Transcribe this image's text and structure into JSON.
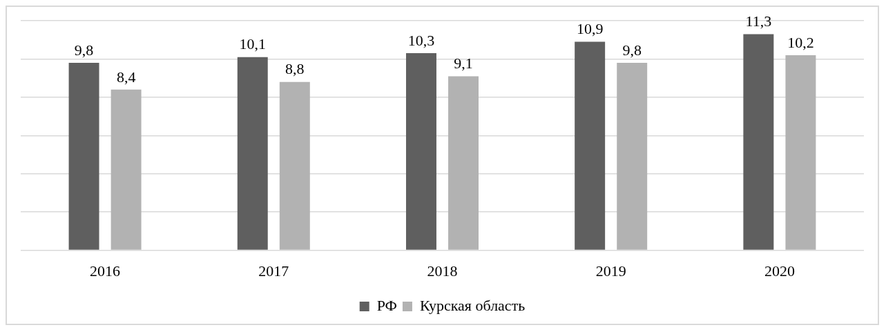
{
  "chart_data": {
    "type": "bar",
    "categories": [
      "2016",
      "2017",
      "2018",
      "2019",
      "2020"
    ],
    "series": [
      {
        "name": "РФ",
        "color": "#5f5f5f",
        "values": [
          9.8,
          10.1,
          10.3,
          10.9,
          11.3
        ],
        "value_labels": [
          "9,8",
          "10,1",
          "10,3",
          "10,9",
          "11,3"
        ]
      },
      {
        "name": "Курская область",
        "color": "#b2b2b2",
        "values": [
          8.4,
          8.8,
          9.1,
          9.8,
          10.2
        ],
        "value_labels": [
          "8,4",
          "8,8",
          "9,1",
          "9,8",
          "10,2"
        ]
      }
    ],
    "ylim": [
      0,
      12
    ],
    "yticks": [
      {
        "value": 0,
        "label": null
      },
      {
        "value": 2,
        "label": null
      },
      {
        "value": 4,
        "label": null
      },
      {
        "value": 6,
        "label": null
      },
      {
        "value": 8,
        "label": null
      },
      {
        "value": 10,
        "label": null
      },
      {
        "value": 12,
        "label": null
      }
    ],
    "tick_labels": "x",
    "grid": "y",
    "legend": "bottom"
  }
}
